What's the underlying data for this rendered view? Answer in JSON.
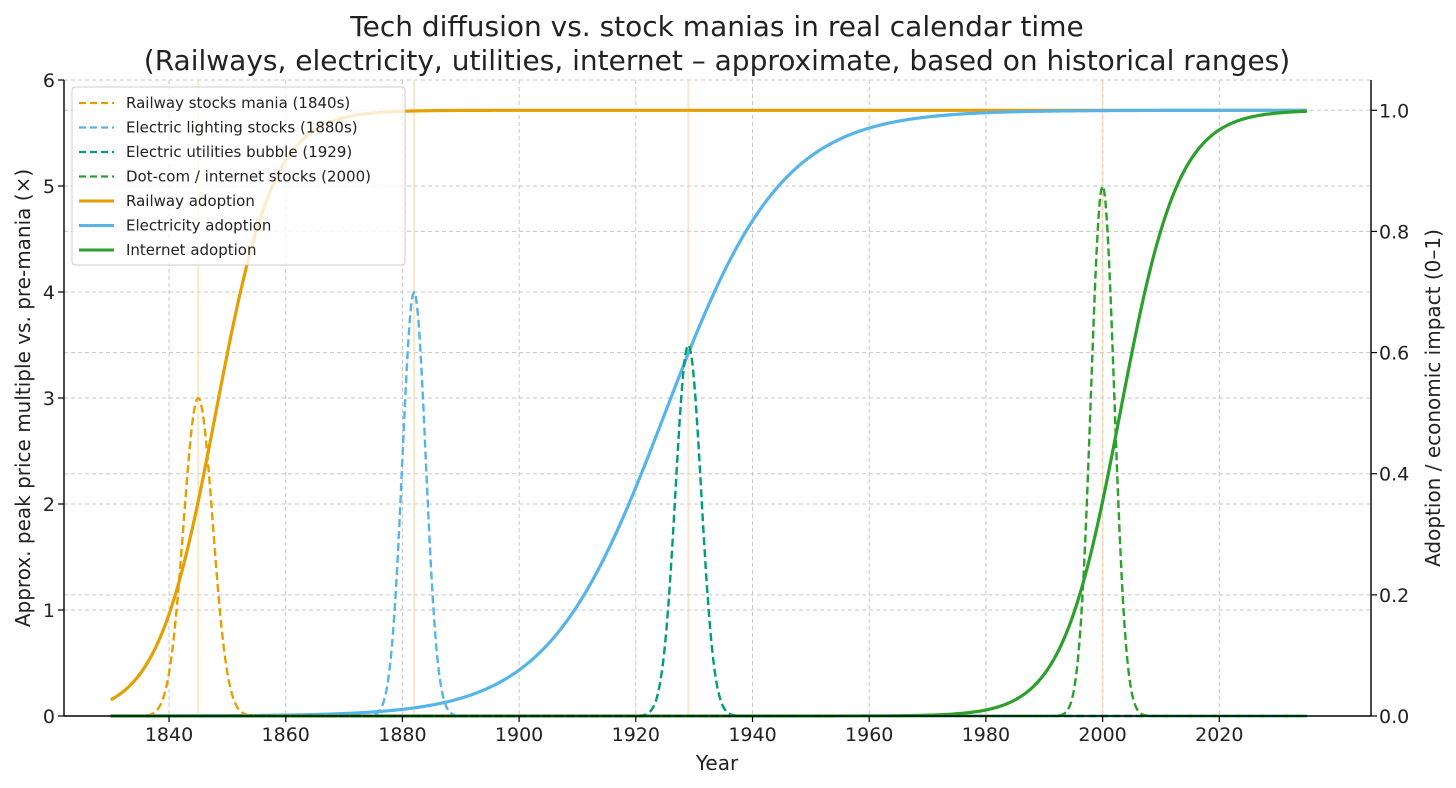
{
  "chart_data": {
    "type": "line",
    "title": "Tech diffusion vs. stock manias in real calendar time",
    "subtitle": "(Railways, electricity, utilities, internet – approximate, based on historical ranges)",
    "xlabel": "Year",
    "ylabel": "Approx. peak price multiple vs. pre-mania (×)",
    "y2label": "Adoption / economic impact (0–1)",
    "xlim": [
      1822,
      2046
    ],
    "ylim": [
      0,
      6
    ],
    "y2lim": [
      0,
      1.05
    ],
    "x_ticks": [
      1840,
      1860,
      1880,
      1900,
      1920,
      1940,
      1960,
      1980,
      2000,
      2020
    ],
    "y_ticks": [
      0,
      1,
      2,
      3,
      4,
      5,
      6
    ],
    "y2_ticks": [
      "0.0",
      "0.2",
      "0.4",
      "0.6",
      "0.8",
      "1.0"
    ],
    "grid": true,
    "legend_position": "top-left",
    "x_range": [
      1830,
      2035
    ],
    "mania_series": [
      {
        "name": "Railway stocks mania (1840s)",
        "color": "#E69F00",
        "style": "dashed",
        "axis": "left",
        "peak_year": 1845,
        "peak_value": 3.0,
        "width_years": 2.5
      },
      {
        "name": "Electric lighting stocks (1880s)",
        "color": "#56B4E9",
        "style": "dashed",
        "axis": "left",
        "peak_year": 1882,
        "peak_value": 4.0,
        "width_years": 2.0
      },
      {
        "name": "Electric utilities bubble (1929)",
        "color": "#009E73",
        "style": "dashed",
        "axis": "left",
        "peak_year": 1929,
        "peak_value": 3.5,
        "width_years": 2.2
      },
      {
        "name": "Dot-com / internet stocks (2000)",
        "color": "#2CA02C",
        "style": "dashed",
        "axis": "left",
        "peak_year": 2000,
        "peak_value": 5.0,
        "width_years": 2.0
      }
    ],
    "adoption_series": [
      {
        "name": "Railway adoption",
        "color": "#E69F00",
        "style": "solid",
        "axis": "right",
        "midpoint_year": 1848,
        "steepness": 0.2
      },
      {
        "name": "Electricity adoption",
        "color": "#56B4E9",
        "style": "solid",
        "axis": "right",
        "midpoint_year": 1925,
        "steepness": 0.1
      },
      {
        "name": "Internet adoption",
        "color": "#2CA02C",
        "style": "solid",
        "axis": "right",
        "midpoint_year": 2003,
        "steepness": 0.2
      }
    ],
    "event_markers": [
      1845,
      1882,
      1929,
      2000
    ]
  }
}
